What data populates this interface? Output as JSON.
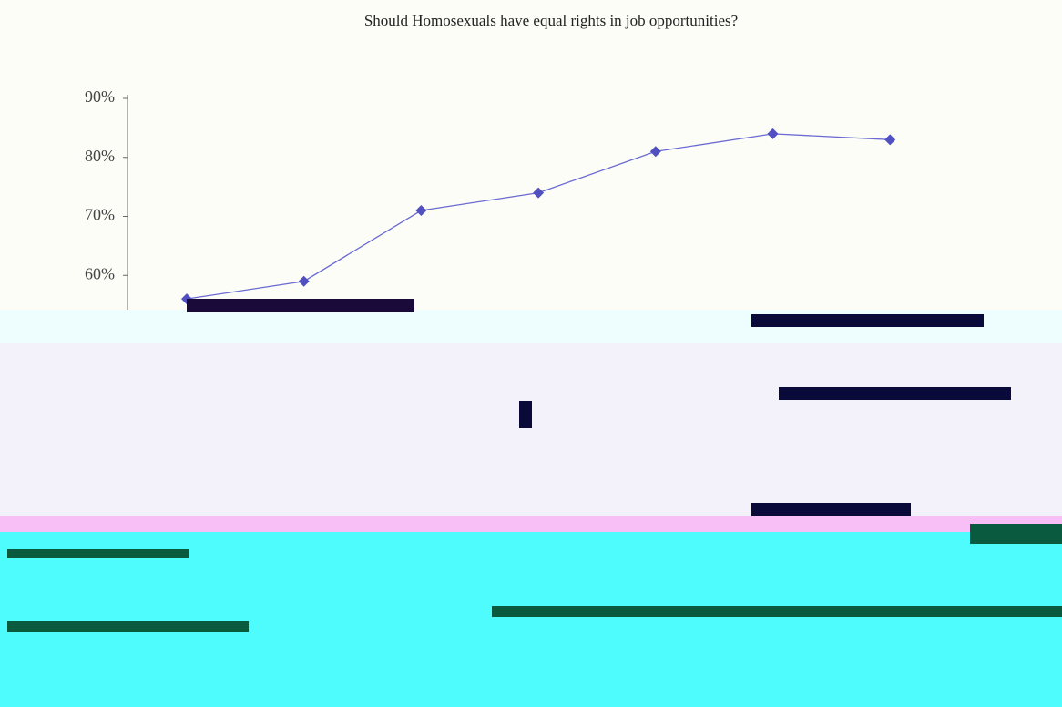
{
  "chart_data": {
    "type": "line",
    "title": "Should Homosexuals have equal rights in job opportunities?",
    "categories": [
      null,
      null,
      null,
      null,
      null,
      null,
      null
    ],
    "series": [
      {
        "name": null,
        "color": "#6a6ad2",
        "values": [
          56,
          59,
          71,
          74,
          81,
          84,
          83
        ]
      }
    ],
    "ylim": [
      50,
      90
    ],
    "yticks": [
      {
        "value": 60,
        "label": "60%"
      },
      {
        "value": 70,
        "label": "70%"
      },
      {
        "value": 80,
        "label": "80%"
      },
      {
        "value": 90,
        "label": "90%"
      }
    ]
  }
}
